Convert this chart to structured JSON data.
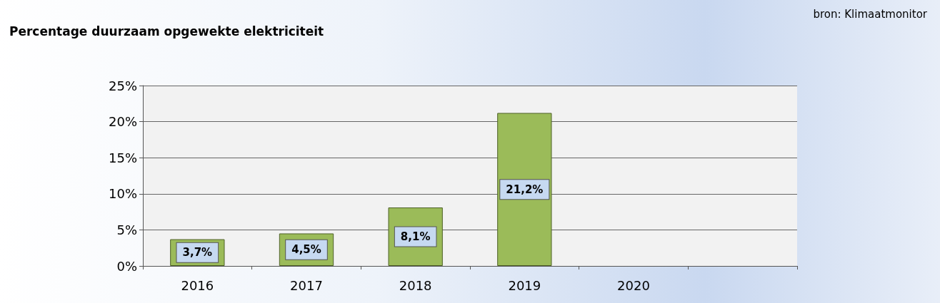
{
  "chart_data": {
    "type": "bar",
    "title": "Percentage duurzaam opgewekte elektriciteit",
    "annotations": [
      "bron: Klimaatmonitor"
    ],
    "categories": [
      "2016",
      "2017",
      "2018",
      "2019",
      "2020",
      null
    ],
    "values": [
      3.7,
      4.5,
      8.1,
      21.2,
      null,
      null
    ],
    "value_labels": [
      "3,7%",
      "4,5%",
      "8,1%",
      "21,2%",
      null,
      null
    ],
    "color": "#9bbb59",
    "ylim": [
      0,
      25
    ],
    "yticks": [
      {
        "value": 0,
        "label": "0%"
      },
      {
        "value": 5,
        "label": "5%"
      },
      {
        "value": 10,
        "label": "10%"
      },
      {
        "value": 15,
        "label": "15%"
      },
      {
        "value": 20,
        "label": "20%"
      },
      {
        "value": 25,
        "label": "25%"
      }
    ],
    "grid": "y"
  }
}
